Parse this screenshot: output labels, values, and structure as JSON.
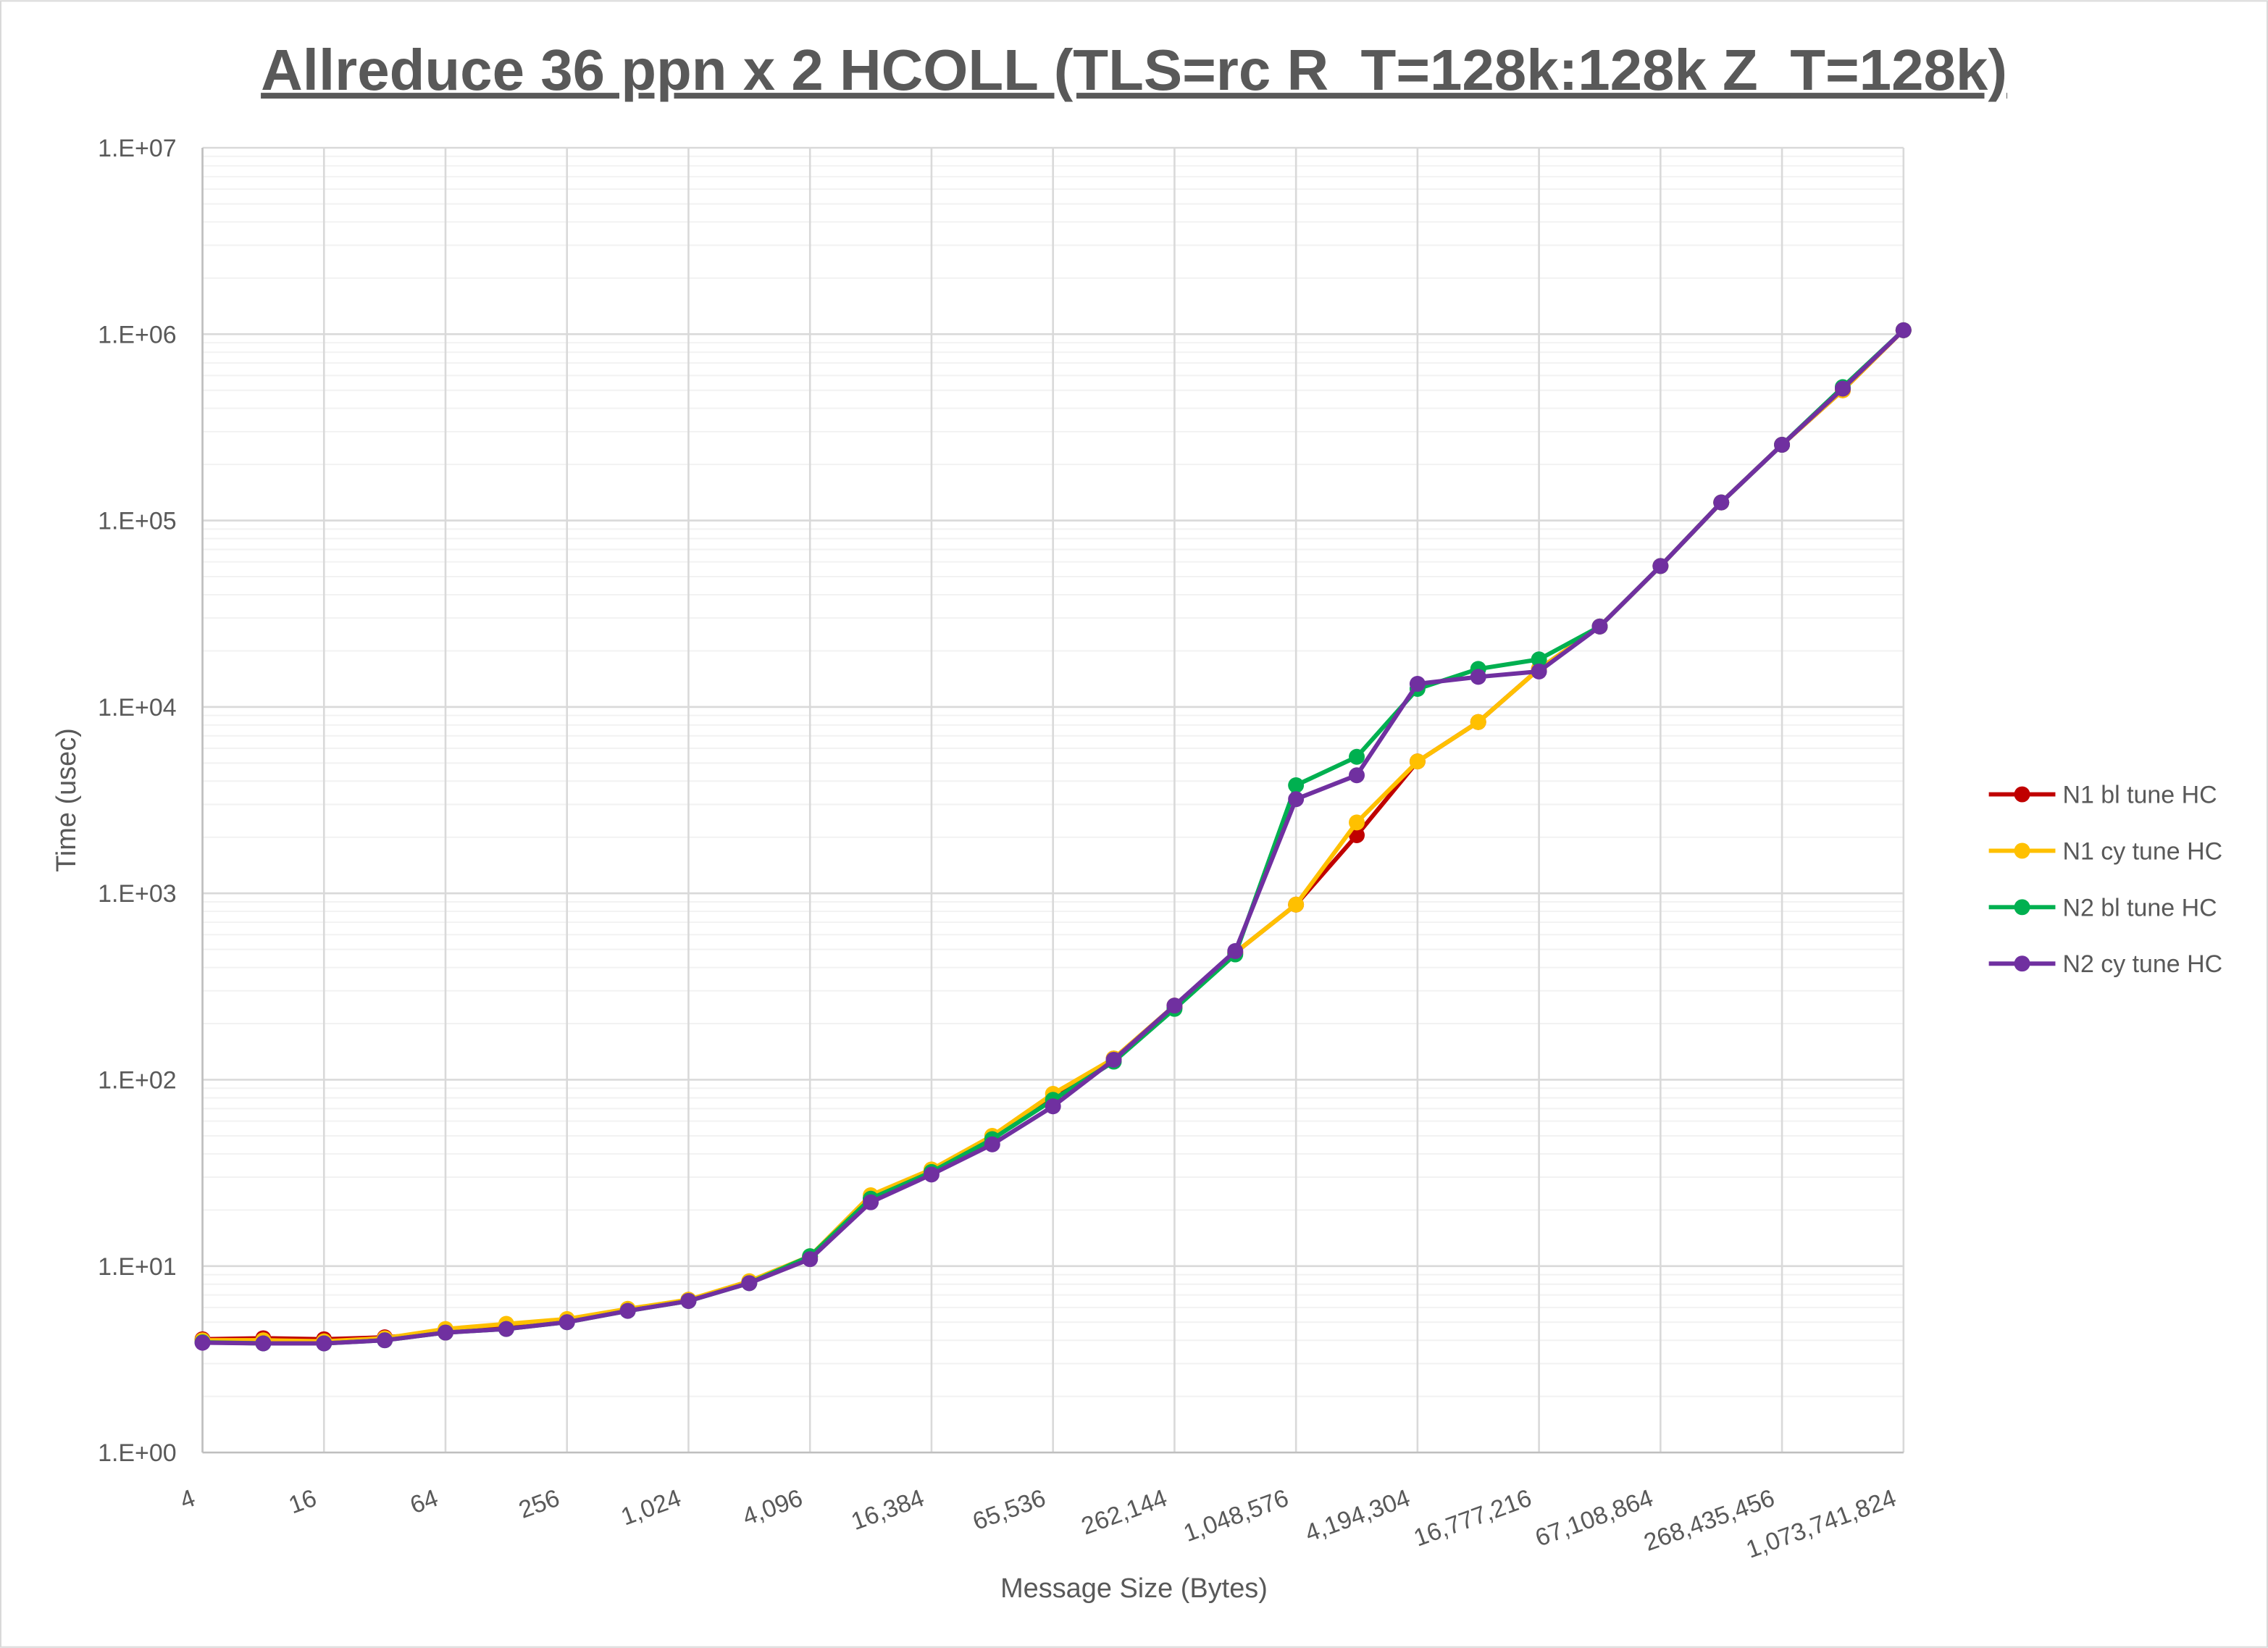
{
  "chart_data": {
    "type": "line",
    "title": "Allreduce 36 ppn x 2 HCOLL (TLS=rc R_T=128k:128k Z_T=128k)",
    "xlabel": "Message Size (Bytes)",
    "ylabel": "Time (usec)",
    "x_scale": "log2",
    "y_scale": "log10",
    "ylim": [
      1,
      10000000
    ],
    "grid": true,
    "legend_position": "right",
    "x": [
      4,
      8,
      16,
      32,
      64,
      128,
      256,
      512,
      1024,
      2048,
      4096,
      8192,
      16384,
      32768,
      65536,
      131072,
      262144,
      524288,
      1048576,
      2097152,
      4194304,
      8388608,
      16777216,
      33554432,
      67108864,
      134217728,
      268435456,
      536870912,
      1073741824
    ],
    "x_tick_labels": [
      "4",
      "16",
      "64",
      "256",
      "1,024",
      "4,096",
      "16,384",
      "65,536",
      "262,144",
      "1,048,576",
      "4,194,304",
      "16,777,216",
      "67,108,864",
      "268,435,456",
      "1,073,741,824"
    ],
    "y_tick_labels": [
      "1.E+00",
      "1.E+01",
      "1.E+02",
      "1.E+03",
      "1.E+04",
      "1.E+05",
      "1.E+06",
      "1.E+07"
    ],
    "series": [
      {
        "name": "N1 bl tune HC",
        "color": "#c00000",
        "values": [
          4.05,
          4.1,
          4.05,
          4.15,
          4.4,
          4.7,
          5.1,
          5.8,
          6.6,
          8.2,
          11.2,
          23,
          32,
          48,
          80,
          130,
          245,
          480,
          870,
          2050,
          5100,
          8300,
          16000,
          27000,
          57000,
          125000,
          255000,
          500000,
          1050000
        ]
      },
      {
        "name": "N1 cy tune HC",
        "color": "#ffc000",
        "values": [
          4.0,
          4.0,
          3.95,
          4.1,
          4.6,
          4.9,
          5.2,
          5.9,
          6.6,
          8.3,
          11.3,
          24,
          33,
          50,
          84,
          130,
          250,
          480,
          870,
          2400,
          5100,
          8300,
          16000,
          27000,
          57000,
          125000,
          255000,
          500000,
          1050000
        ]
      },
      {
        "name": "N2 bl tune HC",
        "color": "#00b050",
        "values": [
          3.9,
          3.85,
          3.85,
          4.0,
          4.4,
          4.6,
          5.0,
          5.75,
          6.5,
          8.1,
          11.3,
          23,
          32,
          48,
          78,
          125,
          240,
          470,
          3800,
          5400,
          12500,
          16000,
          18000,
          27000,
          57000,
          125000,
          255000,
          520000,
          1050000
        ]
      },
      {
        "name": "N2 cy tune HC",
        "color": "#7030a0",
        "values": [
          3.88,
          3.85,
          3.85,
          4.0,
          4.4,
          4.6,
          5.0,
          5.75,
          6.5,
          8.1,
          10.9,
          22,
          31,
          45,
          72,
          128,
          250,
          490,
          3200,
          4300,
          13300,
          14500,
          15500,
          27000,
          57000,
          125000,
          255000,
          510000,
          1050000
        ]
      }
    ]
  }
}
